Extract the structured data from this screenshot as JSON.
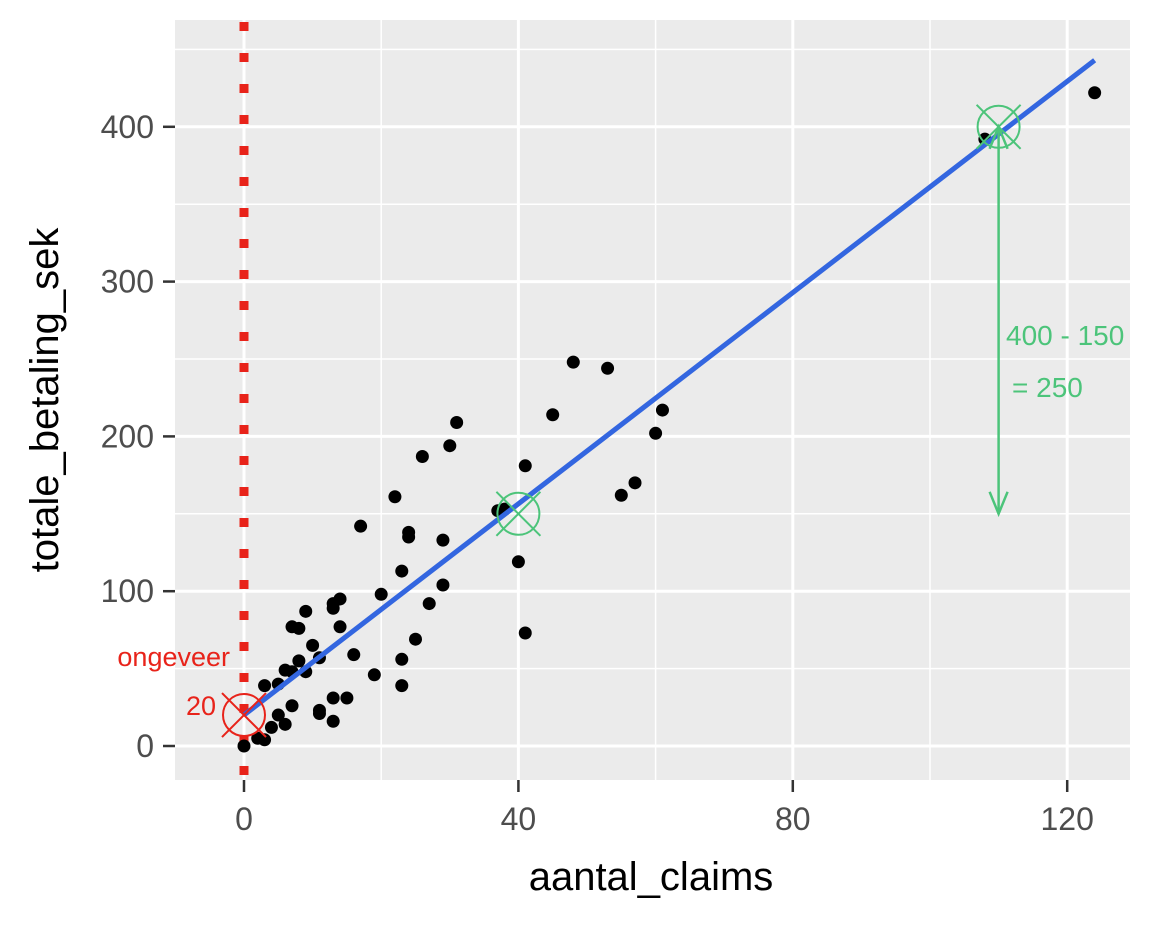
{
  "chart_data": {
    "type": "scatter",
    "title": "",
    "xlabel": "aantal_claims",
    "ylabel": "totale_betaling_sek",
    "xlim": [
      -10,
      130
    ],
    "ylim": [
      -22,
      455
    ],
    "x_ticks": [
      0,
      40,
      80,
      120
    ],
    "y_ticks": [
      0,
      100,
      200,
      300,
      400
    ],
    "x_tick_labels": [
      "0",
      "40",
      "80",
      "120"
    ],
    "y_tick_labels": [
      "0",
      "100",
      "200",
      "300",
      "400"
    ],
    "grid": true,
    "legend": "none",
    "points": [
      [
        0,
        0
      ],
      [
        2,
        5
      ],
      [
        3,
        4
      ],
      [
        4,
        12
      ],
      [
        5,
        20
      ],
      [
        6,
        14
      ],
      [
        7,
        26
      ],
      [
        3,
        39
      ],
      [
        5,
        40
      ],
      [
        6,
        49
      ],
      [
        7,
        48
      ],
      [
        8,
        55
      ],
      [
        9,
        48
      ],
      [
        10,
        65
      ],
      [
        11,
        57
      ],
      [
        7,
        77
      ],
      [
        8,
        76
      ],
      [
        9,
        87
      ],
      [
        11,
        21
      ],
      [
        11,
        23
      ],
      [
        13,
        16
      ],
      [
        13,
        31
      ],
      [
        15,
        31
      ],
      [
        13,
        89
      ],
      [
        13,
        92
      ],
      [
        14,
        95
      ],
      [
        14,
        77
      ],
      [
        16,
        59
      ],
      [
        17,
        142
      ],
      [
        19,
        46
      ],
      [
        20,
        98
      ],
      [
        22,
        161
      ],
      [
        23,
        113
      ],
      [
        23,
        56
      ],
      [
        23,
        39
      ],
      [
        24,
        135
      ],
      [
        24,
        138
      ],
      [
        25,
        69
      ],
      [
        26,
        187
      ],
      [
        27,
        92
      ],
      [
        29,
        133
      ],
      [
        29,
        104
      ],
      [
        30,
        194
      ],
      [
        31,
        209
      ],
      [
        37,
        152
      ],
      [
        38,
        153
      ],
      [
        40,
        119
      ],
      [
        41,
        181
      ],
      [
        41,
        73
      ],
      [
        45,
        214
      ],
      [
        48,
        248
      ],
      [
        53,
        244
      ],
      [
        55,
        162
      ],
      [
        57,
        170
      ],
      [
        60,
        202
      ],
      [
        61,
        217
      ],
      [
        108,
        392
      ],
      [
        124,
        422
      ]
    ],
    "series": [
      {
        "name": "data",
        "color": "#000000",
        "kind": "points"
      },
      {
        "name": "regression line",
        "color": "#3366e0",
        "kind": "line",
        "x": [
          0,
          124
        ],
        "y": [
          20,
          443
        ]
      }
    ],
    "reference_line": {
      "axis": "x",
      "value": 0,
      "style": "dotted",
      "color": "#e8231a"
    },
    "annotations": [
      {
        "kind": "circle-x",
        "x": 0,
        "y": 20,
        "color": "#e8231a"
      },
      {
        "kind": "circle-x",
        "x": 40,
        "y": 150,
        "color": "#4cc47a"
      },
      {
        "kind": "circle-x",
        "x": 110,
        "y": 400,
        "color": "#4cc47a"
      },
      {
        "kind": "arrow",
        "x": 110,
        "y_from": 400,
        "y_to": 150,
        "color": "#4cc47a"
      },
      {
        "kind": "text",
        "text": "ongeveer",
        "color": "#e8231a"
      },
      {
        "kind": "text",
        "text": "20",
        "color": "#e8231a"
      },
      {
        "kind": "text",
        "text": "400 - 150",
        "color": "#4cc47a"
      },
      {
        "kind": "text",
        "text": "= 250",
        "color": "#4cc47a"
      }
    ]
  },
  "labels": {
    "xlabel": "aantal_claims",
    "ylabel": "totale_betaling_sek",
    "anno_red_1": "ongeveer",
    "anno_red_2": "20",
    "anno_green_1": "400 - 150",
    "anno_green_2": "= 250",
    "xticks": [
      "0",
      "40",
      "80",
      "120"
    ],
    "yticks": [
      "0",
      "100",
      "200",
      "300",
      "400"
    ]
  },
  "colors": {
    "panel_bg": "#ebebeb",
    "grid": "#ffffff",
    "line": "#3366e0",
    "red": "#e8231a",
    "green": "#4cc47a",
    "points": "#000000"
  }
}
